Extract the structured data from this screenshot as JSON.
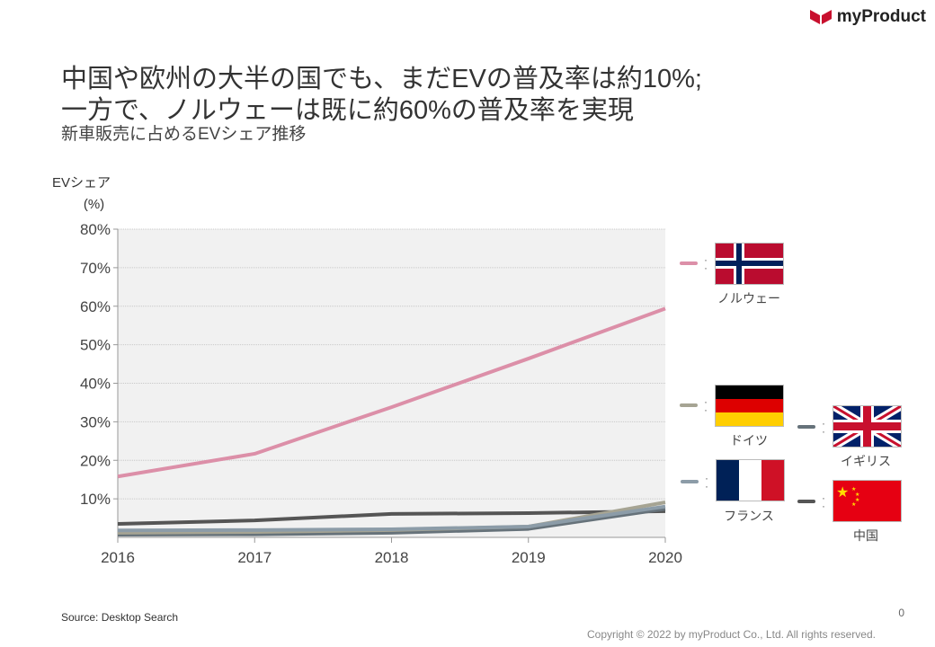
{
  "logo": {
    "text": "myProduct"
  },
  "title_lines": [
    "中国や欧州の大半の国でも、まだEVの普及率は約10%;",
    "一方で、ノルウェーは既に約60%の普及率を実現"
  ],
  "subtitle": "新車販売に占めるEVシェア推移",
  "y_axis_title": [
    "EVシェア",
    "(%)"
  ],
  "legend": [
    {
      "name": "ノルウェー",
      "color": "#dc8fa8",
      "flag": "norway-flag"
    },
    {
      "name": "ドイツ",
      "color": "#a6a493",
      "flag": "germany-flag"
    },
    {
      "name": "フランス",
      "color": "#8c9ca8",
      "flag": "france-flag"
    },
    {
      "name": "イギリス",
      "color": "#66727a",
      "flag": "uk-flag"
    },
    {
      "name": "中国",
      "color": "#555555",
      "flag": "china-flag"
    }
  ],
  "chart_data": {
    "type": "line",
    "title": "新車販売に占めるEVシェア推移",
    "xlabel": "",
    "ylabel": "EVシェア (%)",
    "x": [
      "2016",
      "2017",
      "2018",
      "2019",
      "2020"
    ],
    "ylim": [
      0,
      80
    ],
    "yticks": [
      "10%",
      "20%",
      "30%",
      "40%",
      "50%",
      "60%",
      "70%",
      "80%"
    ],
    "ytick_values": [
      10,
      20,
      30,
      40,
      50,
      60,
      70,
      80
    ],
    "grid": true,
    "legend_placement": "right",
    "series": [
      {
        "name": "中国",
        "color": "#555555",
        "values": [
          3.5,
          4.4,
          6.1,
          6.3,
          6.8
        ]
      },
      {
        "name": "イギリス",
        "color": "#66727a",
        "values": [
          0.7,
          0.8,
          1.2,
          2.2,
          7.4
        ]
      },
      {
        "name": "ドイツ",
        "color": "#a6a493",
        "values": [
          1.2,
          1.4,
          1.9,
          2.8,
          9.1
        ]
      },
      {
        "name": "フランス",
        "color": "#8c9ca8",
        "values": [
          1.8,
          1.9,
          2.1,
          2.8,
          8.0
        ]
      },
      {
        "name": "ノルウェー",
        "color": "#dc8fa8",
        "values": [
          15.8,
          21.7,
          33.8,
          46.4,
          59.4
        ]
      }
    ]
  },
  "source": "Source: Desktop Search",
  "page_number": "0",
  "copyright": "Copyright © 2022 by myProduct Co., Ltd.  All rights reserved."
}
